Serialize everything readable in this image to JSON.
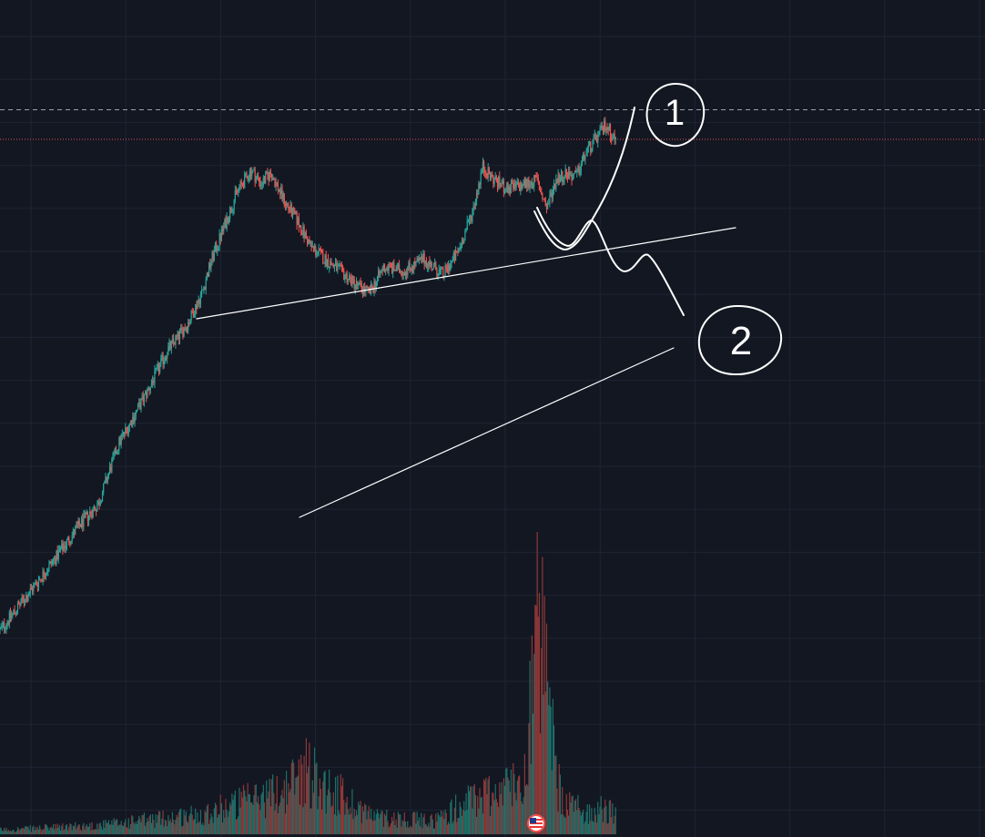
{
  "colors": {
    "background": "#131722",
    "grid": "#1f2433",
    "up": "#26a69a",
    "down": "#ef5350",
    "volume_up": "#1f6f69",
    "volume_down": "#8e3838",
    "drawing": "#ffffff",
    "dashed_line": "#9aa0ab",
    "dotted_line": "#ef5350"
  },
  "icons": {
    "event_flag": "us-flag-icon"
  },
  "drawing_labels": {
    "scenario_1": "1",
    "scenario_2": "2"
  },
  "chart_data": {
    "type": "candlestick",
    "xlabel": "",
    "ylabel": "",
    "grid": true,
    "price_path": [
      [
        0,
        1.0
      ],
      [
        0.04,
        1.6
      ],
      [
        0.08,
        2.6
      ],
      [
        0.1,
        3.2
      ],
      [
        0.12,
        5.5
      ],
      [
        0.15,
        9.0
      ],
      [
        0.17,
        13.0
      ],
      [
        0.19,
        16.5
      ],
      [
        0.205,
        22.0
      ],
      [
        0.215,
        30.0
      ],
      [
        0.225,
        38.0
      ],
      [
        0.24,
        55.0
      ],
      [
        0.255,
        68.0
      ],
      [
        0.265,
        60.0
      ],
      [
        0.275,
        66.0
      ],
      [
        0.29,
        50.0
      ],
      [
        0.3,
        44.0
      ],
      [
        0.315,
        34.0
      ],
      [
        0.33,
        30.0
      ],
      [
        0.345,
        27.0
      ],
      [
        0.36,
        24.0
      ],
      [
        0.375,
        22.0
      ],
      [
        0.39,
        28.0
      ],
      [
        0.41,
        27.0
      ],
      [
        0.43,
        30.0
      ],
      [
        0.45,
        26.0
      ],
      [
        0.465,
        32.0
      ],
      [
        0.48,
        47.0
      ],
      [
        0.49,
        70.0
      ],
      [
        0.5,
        63.0
      ],
      [
        0.515,
        57.0
      ],
      [
        0.53,
        59.0
      ],
      [
        0.545,
        62.0
      ],
      [
        0.555,
        48.0
      ],
      [
        0.565,
        63.0
      ],
      [
        0.575,
        66.0
      ],
      [
        0.585,
        64.0
      ],
      [
        0.595,
        80.0
      ],
      [
        0.61,
        96.0
      ],
      [
        0.615,
        104.0
      ],
      [
        0.625,
        89.0
      ]
    ],
    "volume_path": [
      [
        0,
        0.2
      ],
      [
        0.1,
        0.4
      ],
      [
        0.2,
        0.9
      ],
      [
        0.25,
        1.5
      ],
      [
        0.29,
        2.0
      ],
      [
        0.31,
        3.0
      ],
      [
        0.33,
        2.2
      ],
      [
        0.38,
        0.8
      ],
      [
        0.44,
        0.6
      ],
      [
        0.48,
        1.6
      ],
      [
        0.53,
        2.4
      ],
      [
        0.547,
        9.5
      ],
      [
        0.56,
        4.5
      ],
      [
        0.57,
        1.4
      ],
      [
        0.6,
        1.0
      ],
      [
        0.615,
        1.2
      ],
      [
        0.625,
        0.8
      ]
    ],
    "price_range": [
      0.7,
      140
    ],
    "volume_range": [
      0,
      10
    ],
    "log_scale": true,
    "horizontal_lines": [
      {
        "style": "dashed",
        "value": 118
      },
      {
        "style": "dotted",
        "value": 90
      }
    ]
  }
}
